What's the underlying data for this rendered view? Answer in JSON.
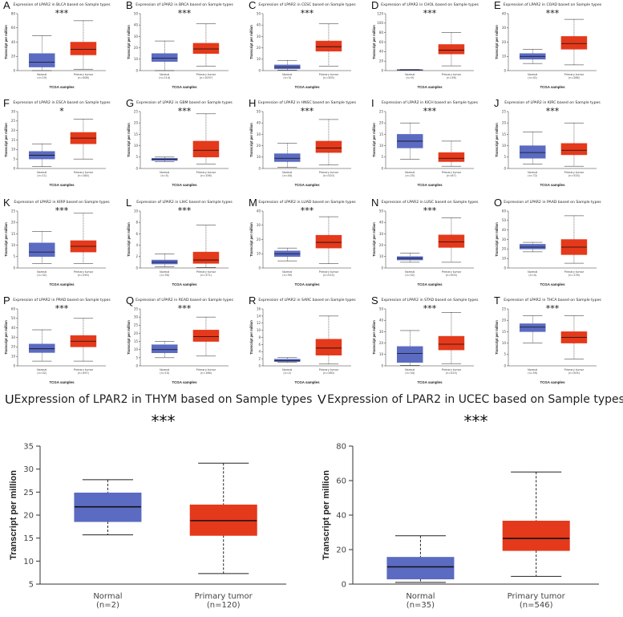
{
  "figure": {
    "xlabel": "TCGA samples",
    "ylabel": "Transcript per million"
  },
  "colors": {
    "normal": "#5B6BC2",
    "tumor": "#E4391B",
    "axis": "#333333",
    "grid": "#999999"
  },
  "chart_data": [
    {
      "panel": "A",
      "type": "boxplot",
      "title": "Expression of LPAR2 in BLCA based on Sample types",
      "significance": "***",
      "ylim": [
        0,
        80
      ],
      "yticks": [
        0,
        20,
        40,
        60,
        80
      ],
      "xlabel": "TCGA samples",
      "ylabel": "Transcript per million",
      "groups": [
        {
          "name": "Normal",
          "n_label": "(n=19)",
          "min": 0,
          "q1": 5,
          "median": 12,
          "q3": 24,
          "max": 49
        },
        {
          "name": "Primary tumor",
          "n_label": "(n=408)",
          "min": 2,
          "q1": 22,
          "median": 30,
          "q3": 40,
          "max": 70
        }
      ]
    },
    {
      "panel": "B",
      "type": "boxplot",
      "title": "Expression of LPAR2 in BRCA based on Sample types",
      "significance": "***",
      "ylim": [
        0,
        50
      ],
      "yticks": [
        0,
        10,
        20,
        30,
        40,
        50
      ],
      "xlabel": "TCGA samples",
      "ylabel": "Transcript per million",
      "groups": [
        {
          "name": "Normal",
          "n_label": "(n=114)",
          "min": 0,
          "q1": 8,
          "median": 11,
          "q3": 15,
          "max": 26
        },
        {
          "name": "Primary tumor",
          "n_label": "(n=1097)",
          "min": 4,
          "q1": 15,
          "median": 19,
          "q3": 24,
          "max": 41
        }
      ]
    },
    {
      "panel": "C",
      "type": "boxplot",
      "title": "Expression of LPAR2 in CESC based on Sample types",
      "significance": "***",
      "ylim": [
        0,
        50
      ],
      "yticks": [
        0,
        10,
        20,
        30,
        40,
        50
      ],
      "xlabel": "TCGA samples",
      "ylabel": "Transcript per million",
      "groups": [
        {
          "name": "Normal",
          "n_label": "(n=3)",
          "min": 0.5,
          "q1": 1.5,
          "median": 3,
          "q3": 5,
          "max": 9
        },
        {
          "name": "Primary tumor",
          "n_label": "(n=305)",
          "min": 4,
          "q1": 17,
          "median": 21,
          "q3": 26,
          "max": 41
        }
      ]
    },
    {
      "panel": "D",
      "type": "boxplot",
      "title": "Expression of LPAR2 in CHOL based on Sample types",
      "significance": "***",
      "ylim": [
        0,
        120
      ],
      "yticks": [
        0,
        20,
        40,
        60,
        80,
        100,
        120
      ],
      "xlabel": "TCGA samples",
      "ylabel": "Transcript per million",
      "groups": [
        {
          "name": "Normal",
          "n_label": "(n=9)",
          "min": 0.5,
          "q1": 1,
          "median": 1.5,
          "q3": 2,
          "max": 2.5
        },
        {
          "name": "Primary tumor",
          "n_label": "(n=36)",
          "min": 10,
          "q1": 35,
          "median": 43,
          "q3": 55,
          "max": 80
        }
      ]
    },
    {
      "panel": "E",
      "type": "boxplot",
      "title": "Expression of LPAR2 in COAD based on Sample types",
      "significance": "***",
      "ylim": [
        0,
        40
      ],
      "yticks": [
        0,
        10,
        20,
        30,
        40
      ],
      "xlabel": "TCGA samples",
      "ylabel": "Transcript per million",
      "groups": [
        {
          "name": "Normal",
          "n_label": "(n=41)",
          "min": 5,
          "q1": 8,
          "median": 10,
          "q3": 12,
          "max": 15
        },
        {
          "name": "Primary tumor",
          "n_label": "(n=286)",
          "min": 4,
          "q1": 15,
          "median": 19,
          "q3": 24,
          "max": 36
        }
      ]
    },
    {
      "panel": "F",
      "type": "boxplot",
      "title": "Expression of LPAR2 in ESCA based on Sample types",
      "significance": "*",
      "ylim": [
        0,
        30
      ],
      "yticks": [
        0,
        5,
        10,
        15,
        20,
        25,
        30
      ],
      "xlabel": "TCGA samples",
      "ylabel": "Transcript per million",
      "groups": [
        {
          "name": "Normal",
          "n_label": "(n=11)",
          "min": 1,
          "q1": 5,
          "median": 7,
          "q3": 9,
          "max": 13
        },
        {
          "name": "Primary tumor",
          "n_label": "(n=184)",
          "min": 5,
          "q1": 13,
          "median": 16,
          "q3": 19,
          "max": 26
        }
      ]
    },
    {
      "panel": "G",
      "type": "boxplot",
      "title": "Expression of LPAR2 in GBM based on Sample types",
      "significance": "***",
      "ylim": [
        0,
        25
      ],
      "yticks": [
        0,
        5,
        10,
        15,
        20,
        25
      ],
      "xlabel": "TCGA samples",
      "ylabel": "Transcript per million",
      "groups": [
        {
          "name": "Normal",
          "n_label": "(n=5)",
          "min": 3,
          "q1": 3.5,
          "median": 4,
          "q3": 4.5,
          "max": 5
        },
        {
          "name": "Primary tumor",
          "n_label": "(n=156)",
          "min": 2,
          "q1": 5,
          "median": 8,
          "q3": 12,
          "max": 24
        }
      ]
    },
    {
      "panel": "H",
      "type": "boxplot",
      "title": "Expression of LPAR2 in HNSC based on Sample types",
      "significance": "***",
      "ylim": [
        0,
        50
      ],
      "yticks": [
        0,
        10,
        20,
        30,
        40,
        50
      ],
      "xlabel": "TCGA samples",
      "ylabel": "Transcript per million",
      "groups": [
        {
          "name": "Normal",
          "n_label": "(n=44)",
          "min": 1,
          "q1": 6,
          "median": 9,
          "q3": 13,
          "max": 22
        },
        {
          "name": "Primary tumor",
          "n_label": "(n=520)",
          "min": 3,
          "q1": 14,
          "median": 18,
          "q3": 24,
          "max": 43
        }
      ]
    },
    {
      "panel": "I",
      "type": "boxplot",
      "title": "Expression of LPAR2 in KICH based on Sample types",
      "significance": "***",
      "ylim": [
        0,
        25
      ],
      "yticks": [
        0,
        5,
        10,
        15,
        20,
        25
      ],
      "xlabel": "TCGA samples",
      "ylabel": "Transcript per million",
      "groups": [
        {
          "name": "Normal",
          "n_label": "(n=25)",
          "min": 4,
          "q1": 9,
          "median": 12,
          "q3": 15,
          "max": 20
        },
        {
          "name": "Primary tumor",
          "n_label": "(n=67)",
          "min": 1,
          "q1": 3,
          "median": 4.5,
          "q3": 7,
          "max": 12
        }
      ]
    },
    {
      "panel": "J",
      "type": "boxplot",
      "title": "Expression of LPAR2 in KIRC based on Sample types",
      "significance": "***",
      "ylim": [
        0,
        25
      ],
      "yticks": [
        0,
        5,
        10,
        15,
        20,
        25
      ],
      "xlabel": "TCGA samples",
      "ylabel": "Transcript per million",
      "groups": [
        {
          "name": "Normal",
          "n_label": "(n=72)",
          "min": 2,
          "q1": 4.5,
          "median": 7,
          "q3": 10,
          "max": 16
        },
        {
          "name": "Primary tumor",
          "n_label": "(n=533)",
          "min": 1,
          "q1": 6,
          "median": 8,
          "q3": 11,
          "max": 20
        }
      ]
    },
    {
      "panel": "K",
      "type": "boxplot",
      "title": "Expression of LPAR2 in KIRP based on Sample types",
      "significance": "***",
      "ylim": [
        0,
        25
      ],
      "yticks": [
        0,
        5,
        10,
        15,
        20,
        25
      ],
      "xlabel": "TCGA samples",
      "ylabel": "Transcript per million",
      "groups": [
        {
          "name": "Normal",
          "n_label": "(n=32)",
          "min": 2,
          "q1": 5,
          "median": 7,
          "q3": 11,
          "max": 16
        },
        {
          "name": "Primary tumor",
          "n_label": "(n=290)",
          "min": 2,
          "q1": 7,
          "median": 9.5,
          "q3": 12,
          "max": 24
        }
      ]
    },
    {
      "panel": "L",
      "type": "boxplot",
      "title": "Expression of LPAR2 in LIHC based on Sample types",
      "significance": "***",
      "ylim": [
        0,
        10
      ],
      "yticks": [
        0,
        2,
        4,
        6,
        8,
        10
      ],
      "xlabel": "TCGA samples",
      "ylabel": "Transcript per million",
      "groups": [
        {
          "name": "Normal",
          "n_label": "(n=50)",
          "min": 0.2,
          "q1": 0.7,
          "median": 1,
          "q3": 1.4,
          "max": 2.5
        },
        {
          "name": "Primary tumor",
          "n_label": "(n=371)",
          "min": 0.1,
          "q1": 0.8,
          "median": 1.4,
          "q3": 2.8,
          "max": 7.5
        }
      ]
    },
    {
      "panel": "M",
      "type": "boxplot",
      "title": "Expression of LPAR2 in LUAD based on Sample types",
      "significance": "***",
      "ylim": [
        0,
        40
      ],
      "yticks": [
        0,
        10,
        20,
        30,
        40
      ],
      "xlabel": "TCGA samples",
      "ylabel": "Transcript per million",
      "groups": [
        {
          "name": "Normal",
          "n_label": "(n=59)",
          "min": 5,
          "q1": 8,
          "median": 10,
          "q3": 12,
          "max": 14
        },
        {
          "name": "Primary tumor",
          "n_label": "(n=515)",
          "min": 3,
          "q1": 14,
          "median": 18,
          "q3": 23,
          "max": 36
        }
      ]
    },
    {
      "panel": "N",
      "type": "boxplot",
      "title": "Expression of LPAR2 in LUSC based on Sample types",
      "significance": "***",
      "ylim": [
        0,
        50
      ],
      "yticks": [
        0,
        10,
        20,
        30,
        40,
        50
      ],
      "xlabel": "TCGA samples",
      "ylabel": "Transcript per million",
      "groups": [
        {
          "name": "Normal",
          "n_label": "(n=52)",
          "min": 5,
          "q1": 7,
          "median": 8.5,
          "q3": 10,
          "max": 13
        },
        {
          "name": "Primary tumor",
          "n_label": "(n=503)",
          "min": 5,
          "q1": 18,
          "median": 23,
          "q3": 29,
          "max": 44
        }
      ]
    },
    {
      "panel": "O",
      "type": "boxplot",
      "title": "Expression of LPAR2 in PAAD based on Sample types",
      "significance": "",
      "ylim": [
        0,
        60
      ],
      "yticks": [
        0,
        10,
        20,
        30,
        40,
        50,
        60
      ],
      "xlabel": "TCGA samples",
      "ylabel": "Transcript per million",
      "groups": [
        {
          "name": "Normal",
          "n_label": "(n=4)",
          "min": 17,
          "q1": 20,
          "median": 22,
          "q3": 25,
          "max": 27
        },
        {
          "name": "Primary tumor",
          "n_label": "(n=178)",
          "min": 5,
          "q1": 14,
          "median": 22,
          "q3": 30,
          "max": 55
        }
      ]
    },
    {
      "panel": "P",
      "type": "boxplot",
      "title": "Expression of LPAR2 in PRAD based on Sample types",
      "significance": "***",
      "ylim": [
        0,
        60
      ],
      "yticks": [
        0,
        10,
        20,
        30,
        40,
        50,
        60
      ],
      "xlabel": "TCGA samples",
      "ylabel": "Transcript per million",
      "groups": [
        {
          "name": "Normal",
          "n_label": "(n=52)",
          "min": 5,
          "q1": 14,
          "median": 18,
          "q3": 23,
          "max": 38
        },
        {
          "name": "Primary tumor",
          "n_label": "(n=497)",
          "min": 5,
          "q1": 20,
          "median": 26,
          "q3": 32,
          "max": 50
        }
      ]
    },
    {
      "panel": "Q",
      "type": "boxplot",
      "title": "Expression of LPAR2 in READ based on Sample types",
      "significance": "***",
      "ylim": [
        0,
        35
      ],
      "yticks": [
        0,
        5,
        10,
        15,
        20,
        25,
        30,
        35
      ],
      "xlabel": "TCGA samples",
      "ylabel": "Transcript per million",
      "groups": [
        {
          "name": "Normal",
          "n_label": "(n=10)",
          "min": 5,
          "q1": 8,
          "median": 10,
          "q3": 13,
          "max": 15
        },
        {
          "name": "Primary tumor",
          "n_label": "(n=166)",
          "min": 6,
          "q1": 15,
          "median": 18,
          "q3": 22,
          "max": 30
        }
      ]
    },
    {
      "panel": "R",
      "type": "boxplot",
      "title": "Expression of LPAR2 in SARC based on Sample types",
      "significance": "",
      "ylim": [
        0,
        16
      ],
      "yticks": [
        0,
        2,
        4,
        6,
        8,
        10,
        12,
        14,
        16
      ],
      "xlabel": "TCGA samples",
      "ylabel": "Transcript per million",
      "groups": [
        {
          "name": "Normal",
          "n_label": "(n=2)",
          "min": 1,
          "q1": 1.2,
          "median": 1.5,
          "q3": 1.9,
          "max": 2.3
        },
        {
          "name": "Primary tumor",
          "n_label": "(n=260)",
          "min": 0.5,
          "q1": 3,
          "median": 5,
          "q3": 7.5,
          "max": 14
        }
      ]
    },
    {
      "panel": "S",
      "type": "boxplot",
      "title": "Expression of LPAR2 in STAD based on Sample types",
      "significance": "***",
      "ylim": [
        0,
        50
      ],
      "yticks": [
        0,
        10,
        20,
        30,
        40,
        50
      ],
      "xlabel": "TCGA samples",
      "ylabel": "Transcript per million",
      "groups": [
        {
          "name": "Normal",
          "n_label": "(n=34)",
          "min": 0.5,
          "q1": 3,
          "median": 11,
          "q3": 17,
          "max": 31
        },
        {
          "name": "Primary tumor",
          "n_label": "(n=415)",
          "min": 2,
          "q1": 14,
          "median": 19,
          "q3": 26,
          "max": 47
        }
      ]
    },
    {
      "panel": "T",
      "type": "boxplot",
      "title": "Expression of LPAR2 in THCA based on Sample types",
      "significance": "***",
      "ylim": [
        0,
        25
      ],
      "yticks": [
        0,
        5,
        10,
        15,
        20,
        25
      ],
      "xlabel": "TCGA samples",
      "ylabel": "Transcript per million",
      "groups": [
        {
          "name": "Normal",
          "n_label": "(n=59)",
          "min": 10,
          "q1": 15,
          "median": 17,
          "q3": 18.5,
          "max": 22
        },
        {
          "name": "Primary tumor",
          "n_label": "(n=505)",
          "min": 3,
          "q1": 10,
          "median": 12.5,
          "q3": 15,
          "max": 22
        }
      ]
    },
    {
      "panel": "U",
      "type": "boxplot",
      "title": "Expression of LPAR2 in THYM based on Sample types",
      "significance": "***",
      "ylim": [
        5,
        35
      ],
      "yticks": [
        5,
        10,
        15,
        20,
        25,
        30,
        35
      ],
      "xlabel": "TCGA samples",
      "ylabel": "Transcript per million",
      "groups": [
        {
          "name": "Normal",
          "n_label": "(n=2)",
          "min": 15.7,
          "q1": 18.6,
          "median": 21.8,
          "q3": 24.8,
          "max": 27.7
        },
        {
          "name": "Primary tumor",
          "n_label": "(n=120)",
          "min": 7.3,
          "q1": 15.6,
          "median": 18.8,
          "q3": 22.2,
          "max": 31.3
        }
      ]
    },
    {
      "panel": "V",
      "type": "boxplot",
      "title": "Expression of LPAR2 in UCEC based on Sample types",
      "significance": "***",
      "ylim": [
        0,
        80
      ],
      "yticks": [
        0,
        20,
        40,
        60,
        80
      ],
      "xlabel": "TCGA samples",
      "ylabel": "Transcript per million",
      "groups": [
        {
          "name": "Normal",
          "n_label": "(n=35)",
          "min": 1,
          "q1": 3,
          "median": 10,
          "q3": 15.5,
          "max": 28
        },
        {
          "name": "Primary tumor",
          "n_label": "(n=546)",
          "min": 4.5,
          "q1": 19.5,
          "median": 26.5,
          "q3": 36.5,
          "max": 65
        }
      ]
    }
  ]
}
